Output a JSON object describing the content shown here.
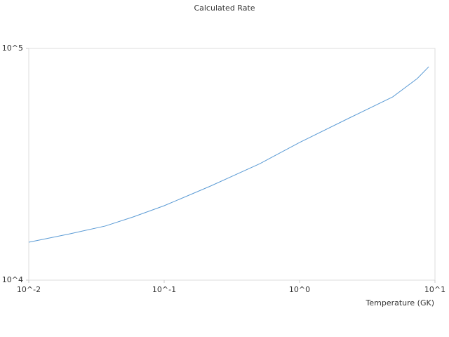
{
  "chart_data": {
    "type": "line",
    "title": "Calculated Rate",
    "xlabel": "Temperature (GK)",
    "log_x": true,
    "log_y": true,
    "grid": false,
    "xlim": [
      0.01,
      10
    ],
    "ylim": [
      10000,
      100000
    ],
    "xticks": [
      {
        "value": 0.01,
        "label": "10^-2"
      },
      {
        "value": 0.1,
        "label": "10^-1"
      },
      {
        "value": 1,
        "label": "10^0"
      },
      {
        "value": 10,
        "label": "10^1"
      }
    ],
    "yticks": [
      {
        "value": 10000,
        "label": "10^4"
      },
      {
        "value": 100000,
        "label": "10^5"
      }
    ],
    "x": [
      0.01,
      0.0202,
      0.0367,
      0.059,
      0.1,
      0.22,
      0.51,
      1.0,
      2.39,
      4.87,
      7.4,
      9.0
    ],
    "series": [
      {
        "color": "#5b9bd5",
        "values": [
          14580,
          15850,
          17120,
          18740,
          20950,
          25470,
          31840,
          39270,
          50470,
          61760,
          74130,
          83370
        ]
      }
    ]
  }
}
